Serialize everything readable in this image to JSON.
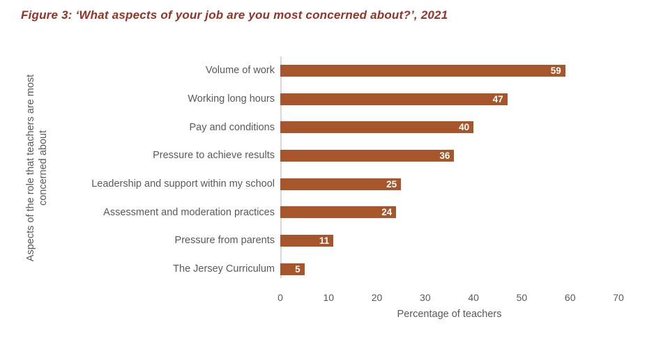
{
  "figure_title": "Figure 3: ‘What aspects of your job are you most concerned about?’, 2021",
  "chart_data": {
    "type": "bar",
    "orientation": "horizontal",
    "categories": [
      "Volume of work",
      "Working long hours",
      "Pay and conditions",
      "Pressure to achieve results",
      "Leadership and support within my school",
      "Assessment and moderation practices",
      "Pressure from parents",
      "The Jersey Curriculum"
    ],
    "values": [
      59,
      47,
      40,
      36,
      25,
      24,
      11,
      5
    ],
    "xlabel": "Percentage of teachers",
    "ylabel": "Aspects of the role that teachers are most concerned about",
    "xlim": [
      0,
      70
    ],
    "xticks": [
      0,
      10,
      20,
      30,
      40,
      50,
      60,
      70
    ],
    "grid": "off",
    "legend": "none",
    "value_labels": "inside-end, white bold"
  },
  "colors": {
    "bar": "#A7552A",
    "title": "#963226",
    "text": "#595959",
    "axis_line": "#D9D9D9",
    "value_label": "#FFFFFF",
    "background": "#FFFFFF"
  }
}
